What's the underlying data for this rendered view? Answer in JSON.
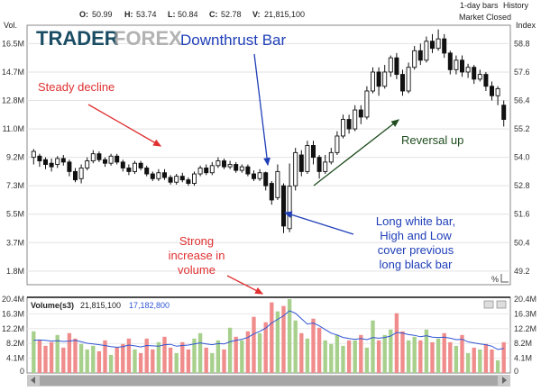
{
  "header": {
    "ohlc": {
      "o_label": "O:",
      "o": "50.99",
      "h_label": "H:",
      "h": "53.74",
      "l_label": "L:",
      "l": "50.84",
      "c_label": "C:",
      "c": "52.78",
      "v_label": "V:",
      "v": "21,815,100"
    },
    "bars_label": "1-day bars",
    "history_label": "History",
    "status": "Market Closed",
    "left_axis_title": "Vol.",
    "right_axis_title": "Index"
  },
  "watermark": {
    "part1": "TRADER",
    "part2": "FOREX"
  },
  "annotations": {
    "downthrust": "Downthrust Bar",
    "steady": "Steady decline",
    "reversal": "Reversal up",
    "long_white": [
      "Long white bar,",
      "High and Low",
      "cover previous",
      "long black bar"
    ],
    "strong_volume": [
      "Strong",
      "increase in",
      "volume"
    ]
  },
  "volume_panel": {
    "label": "Volume",
    "sub": "(s3)",
    "value1": "21,815,100",
    "value2": "17,182,800"
  },
  "percent_label": "%",
  "colors": {
    "up_volume": "#a8d08d",
    "down_volume": "#f08c8c",
    "ma_line": "#2f55d4",
    "red": "#e03030",
    "blue": "#1f3fb8",
    "green": "#1f4d1f"
  },
  "chart_data": {
    "type": "candlestick",
    "price_axis": {
      "label": "Index",
      "ticks": [
        49.2,
        50.4,
        51.6,
        52.8,
        54.0,
        55.2,
        56.4,
        57.6,
        58.8
      ],
      "ylim": [
        48.7,
        59.5
      ]
    },
    "left_volume_axis": {
      "label": "Vol.",
      "ticks": [
        "1.8M",
        "3.7M",
        "5.5M",
        "7.3M",
        "9.2M",
        "11.0M",
        "12.8M",
        "14.7M",
        "16.5M"
      ]
    },
    "volume_axis": {
      "ticks": [
        "0",
        "4.1M",
        "8.2M",
        "12.2M",
        "16.3M",
        "20.4M"
      ],
      "ylim": [
        0,
        20.4
      ]
    },
    "candles": [
      {
        "o": 54.0,
        "c": 54.25,
        "h": 54.35,
        "l": 53.7
      },
      {
        "o": 54.05,
        "c": 53.85,
        "h": 54.15,
        "l": 53.6
      },
      {
        "o": 53.9,
        "c": 53.7,
        "h": 54.0,
        "l": 53.5
      },
      {
        "o": 53.75,
        "c": 53.6,
        "h": 53.95,
        "l": 53.4
      },
      {
        "o": 53.7,
        "c": 53.95,
        "h": 54.05,
        "l": 53.55
      },
      {
        "o": 53.95,
        "c": 53.8,
        "h": 54.1,
        "l": 53.65
      },
      {
        "o": 53.8,
        "c": 53.4,
        "h": 53.9,
        "l": 53.2
      },
      {
        "o": 53.4,
        "c": 53.05,
        "h": 53.55,
        "l": 52.95
      },
      {
        "o": 53.1,
        "c": 53.55,
        "h": 53.7,
        "l": 52.9
      },
      {
        "o": 53.55,
        "c": 53.85,
        "h": 54.0,
        "l": 53.45
      },
      {
        "o": 53.85,
        "c": 54.15,
        "h": 54.3,
        "l": 53.75
      },
      {
        "o": 54.15,
        "c": 53.9,
        "h": 54.25,
        "l": 53.8
      },
      {
        "o": 53.9,
        "c": 53.75,
        "h": 54.0,
        "l": 53.6
      },
      {
        "o": 53.75,
        "c": 54.05,
        "h": 54.15,
        "l": 53.65
      },
      {
        "o": 54.05,
        "c": 53.8,
        "h": 54.15,
        "l": 53.7
      },
      {
        "o": 53.8,
        "c": 53.55,
        "h": 53.9,
        "l": 53.4
      },
      {
        "o": 53.55,
        "c": 53.4,
        "h": 53.7,
        "l": 53.25
      },
      {
        "o": 53.4,
        "c": 53.75,
        "h": 53.85,
        "l": 53.3
      },
      {
        "o": 53.75,
        "c": 53.55,
        "h": 53.85,
        "l": 53.45
      },
      {
        "o": 53.55,
        "c": 53.3,
        "h": 53.65,
        "l": 53.2
      },
      {
        "o": 53.3,
        "c": 53.1,
        "h": 53.4,
        "l": 53.0
      },
      {
        "o": 53.1,
        "c": 53.35,
        "h": 53.5,
        "l": 53.0
      },
      {
        "o": 53.35,
        "c": 53.15,
        "h": 53.5,
        "l": 53.05
      },
      {
        "o": 53.15,
        "c": 52.95,
        "h": 53.25,
        "l": 52.85
      },
      {
        "o": 52.95,
        "c": 53.2,
        "h": 53.3,
        "l": 52.85
      },
      {
        "o": 53.2,
        "c": 53.05,
        "h": 53.35,
        "l": 52.95
      },
      {
        "o": 53.05,
        "c": 52.9,
        "h": 53.15,
        "l": 52.8
      },
      {
        "o": 52.9,
        "c": 53.3,
        "h": 53.4,
        "l": 52.8
      },
      {
        "o": 53.3,
        "c": 53.55,
        "h": 53.65,
        "l": 53.2
      },
      {
        "o": 53.55,
        "c": 53.35,
        "h": 53.7,
        "l": 53.25
      },
      {
        "o": 53.35,
        "c": 53.65,
        "h": 53.8,
        "l": 53.25
      },
      {
        "o": 53.65,
        "c": 53.85,
        "h": 54.0,
        "l": 53.55
      },
      {
        "o": 53.85,
        "c": 53.6,
        "h": 53.95,
        "l": 53.5
      },
      {
        "o": 53.6,
        "c": 53.7,
        "h": 53.85,
        "l": 53.5
      },
      {
        "o": 53.7,
        "c": 53.45,
        "h": 53.8,
        "l": 53.35
      },
      {
        "o": 53.45,
        "c": 53.6,
        "h": 53.7,
        "l": 53.35
      },
      {
        "o": 53.6,
        "c": 53.3,
        "h": 53.7,
        "l": 53.2
      },
      {
        "o": 53.3,
        "c": 53.1,
        "h": 53.45,
        "l": 53.0
      },
      {
        "o": 53.1,
        "c": 53.35,
        "h": 53.5,
        "l": 53.0
      },
      {
        "o": 53.35,
        "c": 52.8,
        "h": 53.4,
        "l": 52.6
      },
      {
        "o": 52.9,
        "c": 52.2,
        "h": 53.0,
        "l": 52.0
      },
      {
        "o": 52.3,
        "c": 53.4,
        "h": 53.7,
        "l": 52.2
      },
      {
        "o": 52.8,
        "c": 51.1,
        "h": 52.9,
        "l": 50.8
      },
      {
        "o": 50.99,
        "c": 52.78,
        "h": 53.74,
        "l": 50.84
      },
      {
        "o": 52.8,
        "c": 54.2,
        "h": 54.4,
        "l": 52.6
      },
      {
        "o": 54.1,
        "c": 53.4,
        "h": 54.3,
        "l": 53.2
      },
      {
        "o": 53.4,
        "c": 54.5,
        "h": 54.7,
        "l": 53.3
      },
      {
        "o": 54.5,
        "c": 54.0,
        "h": 54.7,
        "l": 53.7
      },
      {
        "o": 54.0,
        "c": 53.4,
        "h": 54.1,
        "l": 53.1
      },
      {
        "o": 53.4,
        "c": 53.8,
        "h": 54.1,
        "l": 53.3
      },
      {
        "o": 53.8,
        "c": 54.2,
        "h": 54.4,
        "l": 53.7
      },
      {
        "o": 54.2,
        "c": 54.9,
        "h": 55.1,
        "l": 54.1
      },
      {
        "o": 54.9,
        "c": 55.6,
        "h": 55.8,
        "l": 54.8
      },
      {
        "o": 55.6,
        "c": 55.2,
        "h": 55.8,
        "l": 55.0
      },
      {
        "o": 55.2,
        "c": 56.0,
        "h": 56.2,
        "l": 55.1
      },
      {
        "o": 56.0,
        "c": 55.7,
        "h": 56.2,
        "l": 55.4
      },
      {
        "o": 55.7,
        "c": 56.8,
        "h": 57.0,
        "l": 55.6
      },
      {
        "o": 56.8,
        "c": 57.6,
        "h": 57.8,
        "l": 56.7
      },
      {
        "o": 57.6,
        "c": 57.0,
        "h": 57.8,
        "l": 56.6
      },
      {
        "o": 57.0,
        "c": 57.6,
        "h": 57.9,
        "l": 56.9
      },
      {
        "o": 57.6,
        "c": 58.2,
        "h": 58.3,
        "l": 57.4
      },
      {
        "o": 58.2,
        "c": 57.5,
        "h": 58.4,
        "l": 57.3
      },
      {
        "o": 57.5,
        "c": 56.8,
        "h": 57.7,
        "l": 56.6
      },
      {
        "o": 56.8,
        "c": 57.8,
        "h": 58.0,
        "l": 56.7
      },
      {
        "o": 57.8,
        "c": 58.5,
        "h": 58.7,
        "l": 57.7
      },
      {
        "o": 58.5,
        "c": 58.1,
        "h": 58.8,
        "l": 57.9
      },
      {
        "o": 58.1,
        "c": 58.9,
        "h": 59.1,
        "l": 58.0
      },
      {
        "o": 58.9,
        "c": 58.6,
        "h": 59.2,
        "l": 58.4
      },
      {
        "o": 58.6,
        "c": 59.0,
        "h": 59.4,
        "l": 58.5
      },
      {
        "o": 59.0,
        "c": 58.4,
        "h": 59.2,
        "l": 58.2
      },
      {
        "o": 58.4,
        "c": 57.7,
        "h": 58.5,
        "l": 57.5
      },
      {
        "o": 57.7,
        "c": 58.1,
        "h": 58.3,
        "l": 57.5
      },
      {
        "o": 58.1,
        "c": 57.6,
        "h": 58.3,
        "l": 57.4
      },
      {
        "o": 57.6,
        "c": 57.8,
        "h": 57.95,
        "l": 57.35
      },
      {
        "o": 57.8,
        "c": 57.3,
        "h": 57.9,
        "l": 57.1
      },
      {
        "o": 57.3,
        "c": 57.5,
        "h": 57.7,
        "l": 57.2
      },
      {
        "o": 57.5,
        "c": 57.0,
        "h": 57.6,
        "l": 56.8
      },
      {
        "o": 57.0,
        "c": 56.6,
        "h": 57.2,
        "l": 56.4
      },
      {
        "o": 56.6,
        "c": 56.9,
        "h": 57.0,
        "l": 56.2
      },
      {
        "o": 56.2,
        "c": 55.6,
        "h": 56.4,
        "l": 55.3
      }
    ],
    "volume": [
      {
        "v": 11.5,
        "up": true
      },
      {
        "v": 9.0,
        "up": false
      },
      {
        "v": 7.5,
        "up": false
      },
      {
        "v": 8.5,
        "up": false
      },
      {
        "v": 10.5,
        "up": true
      },
      {
        "v": 7.0,
        "up": false
      },
      {
        "v": 11.0,
        "up": false
      },
      {
        "v": 9.5,
        "up": false
      },
      {
        "v": 8.0,
        "up": true
      },
      {
        "v": 6.5,
        "up": true
      },
      {
        "v": 7.5,
        "up": true
      },
      {
        "v": 6.0,
        "up": false
      },
      {
        "v": 9.0,
        "up": false
      },
      {
        "v": 5.0,
        "up": true
      },
      {
        "v": 7.0,
        "up": false
      },
      {
        "v": 8.0,
        "up": false
      },
      {
        "v": 9.5,
        "up": false
      },
      {
        "v": 6.5,
        "up": true
      },
      {
        "v": 5.5,
        "up": false
      },
      {
        "v": 9.5,
        "up": false
      },
      {
        "v": 6.5,
        "up": false
      },
      {
        "v": 8.5,
        "up": true
      },
      {
        "v": 10.0,
        "up": false
      },
      {
        "v": 7.0,
        "up": false
      },
      {
        "v": 5.5,
        "up": true
      },
      {
        "v": 8.5,
        "up": false
      },
      {
        "v": 6.5,
        "up": false
      },
      {
        "v": 9.5,
        "up": true
      },
      {
        "v": 11.0,
        "up": true
      },
      {
        "v": 7.0,
        "up": false
      },
      {
        "v": 5.5,
        "up": true
      },
      {
        "v": 9.0,
        "up": true
      },
      {
        "v": 6.5,
        "up": false
      },
      {
        "v": 12.5,
        "up": true
      },
      {
        "v": 10.0,
        "up": false
      },
      {
        "v": 9.0,
        "up": true
      },
      {
        "v": 11.5,
        "up": false
      },
      {
        "v": 15.5,
        "up": false
      },
      {
        "v": 11.0,
        "up": true
      },
      {
        "v": 14.0,
        "up": false
      },
      {
        "v": 19.5,
        "up": false
      },
      {
        "v": 17.0,
        "up": true
      },
      {
        "v": 18.5,
        "up": false
      },
      {
        "v": 21.8,
        "up": true
      },
      {
        "v": 14.5,
        "up": true
      },
      {
        "v": 11.0,
        "up": false
      },
      {
        "v": 9.5,
        "up": true
      },
      {
        "v": 15.0,
        "up": false
      },
      {
        "v": 12.5,
        "up": false
      },
      {
        "v": 9.0,
        "up": true
      },
      {
        "v": 8.0,
        "up": true
      },
      {
        "v": 10.5,
        "up": true
      },
      {
        "v": 7.5,
        "up": true
      },
      {
        "v": 9.0,
        "up": false
      },
      {
        "v": 9.0,
        "up": true
      },
      {
        "v": 10.5,
        "up": false
      },
      {
        "v": 7.0,
        "up": true
      },
      {
        "v": 14.5,
        "up": true
      },
      {
        "v": 9.0,
        "up": false
      },
      {
        "v": 10.5,
        "up": true
      },
      {
        "v": 12.0,
        "up": true
      },
      {
        "v": 16.5,
        "up": false
      },
      {
        "v": 11.5,
        "up": false
      },
      {
        "v": 9.0,
        "up": true
      },
      {
        "v": 10.0,
        "up": true
      },
      {
        "v": 9.0,
        "up": false
      },
      {
        "v": 12.0,
        "up": true
      },
      {
        "v": 8.5,
        "up": false
      },
      {
        "v": 9.5,
        "up": true
      },
      {
        "v": 11.0,
        "up": false
      },
      {
        "v": 8.5,
        "up": false
      },
      {
        "v": 7.5,
        "up": true
      },
      {
        "v": 10.5,
        "up": false
      },
      {
        "v": 5.5,
        "up": true
      },
      {
        "v": 7.0,
        "up": false
      },
      {
        "v": 6.5,
        "up": true
      },
      {
        "v": 8.0,
        "up": false
      },
      {
        "v": 6.5,
        "up": false
      },
      {
        "v": 3.5,
        "up": true
      },
      {
        "v": 8.5,
        "up": false
      }
    ],
    "volume_ma": [
      9.0,
      9.1,
      9.0,
      8.8,
      8.9,
      8.7,
      8.8,
      9.0,
      8.6,
      8.2,
      8.0,
      7.8,
      7.6,
      7.3,
      7.1,
      7.3,
      7.7,
      7.5,
      7.2,
      7.6,
      7.5,
      7.4,
      7.8,
      7.9,
      7.4,
      7.6,
      7.7,
      8.0,
      8.3,
      8.0,
      7.8,
      8.1,
      8.0,
      8.6,
      9.0,
      9.3,
      9.8,
      10.8,
      11.5,
      12.4,
      13.8,
      14.8,
      15.8,
      17.2,
      16.5,
      15.0,
      13.5,
      13.8,
      13.0,
      12.0,
      11.0,
      10.5,
      9.8,
      9.5,
      9.3,
      9.5,
      9.2,
      9.8,
      9.6,
      9.8,
      10.2,
      11.2,
      11.0,
      10.6,
      10.4,
      10.0,
      10.3,
      9.9,
      9.8,
      9.9,
      9.6,
      9.2,
      9.3,
      8.6,
      8.3,
      8.0,
      7.8,
      7.4,
      6.5,
      6.8
    ]
  }
}
